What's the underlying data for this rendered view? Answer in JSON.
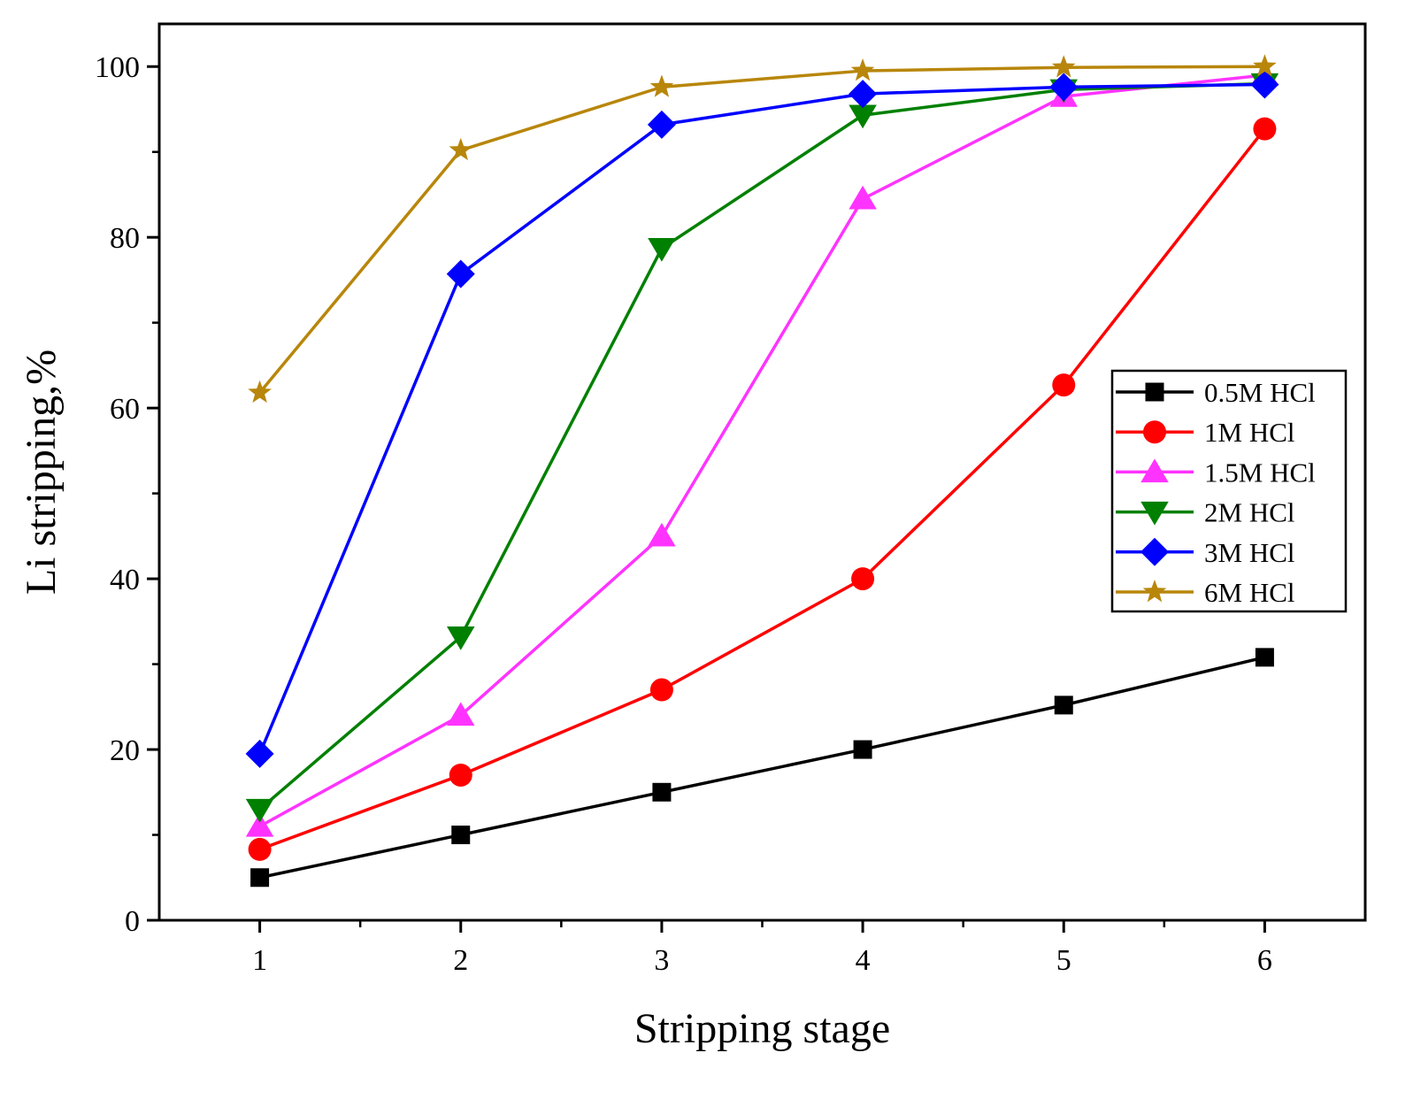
{
  "chart_data": {
    "type": "line",
    "title": "",
    "xlabel": "Stripping stage",
    "ylabel": "Li stripping,%",
    "x": [
      1,
      2,
      3,
      4,
      5,
      6
    ],
    "xlim": [
      0.5,
      6.5
    ],
    "ylim": [
      0,
      105
    ],
    "xticks": [
      "1",
      "2",
      "3",
      "4",
      "5",
      "6"
    ],
    "yticks": [
      "0",
      "20",
      "40",
      "60",
      "80",
      "100"
    ],
    "grid": false,
    "legend_position": "right",
    "series": [
      {
        "name": "0.5M HCl",
        "color": "#000000",
        "marker": "square",
        "values": [
          5.0,
          10.0,
          15.0,
          20.0,
          25.2,
          30.8
        ]
      },
      {
        "name": "1M HCl",
        "color": "#ff0000",
        "marker": "circle",
        "values": [
          8.3,
          17.0,
          27.0,
          40.0,
          62.7,
          92.7
        ]
      },
      {
        "name": "1.5M HCl",
        "color": "#ff33ff",
        "marker": "triangle-up",
        "values": [
          11.0,
          24.0,
          45.0,
          84.5,
          96.5,
          99.0
        ]
      },
      {
        "name": "2M HCl",
        "color": "#008000",
        "marker": "triangle-down",
        "values": [
          13.0,
          33.2,
          78.7,
          94.3,
          97.3,
          98.0
        ]
      },
      {
        "name": "3M HCl",
        "color": "#0000ff",
        "marker": "diamond",
        "values": [
          19.5,
          75.7,
          93.2,
          96.8,
          97.6,
          97.9
        ]
      },
      {
        "name": "6M HCl",
        "color": "#b8860b",
        "marker": "star",
        "values": [
          61.8,
          90.2,
          97.6,
          99.5,
          99.9,
          100.0
        ]
      }
    ]
  }
}
